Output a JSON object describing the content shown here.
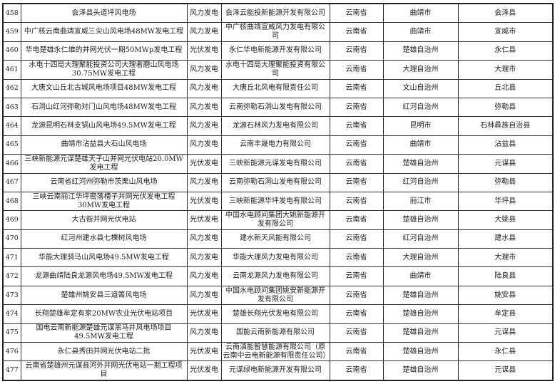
{
  "table": {
    "rows": [
      {
        "no": "458",
        "project": "会泽县头道坪风电场",
        "type": "风力发电",
        "company": "会泽云能投新能源开发有限公司",
        "province": "云南省",
        "city": "曲靖市",
        "county": "会泽县"
      },
      {
        "no": "459",
        "project": "中广核云南曲靖宣威三尖山风电场48MW发电工程",
        "type": "风力发电",
        "company": "中广核曲靖宣威风力发电有限公司",
        "province": "云南省",
        "city": "曲靖市",
        "county": "宣威市"
      },
      {
        "no": "460",
        "project": "华电楚雄永仁维的并网光伏一期50MWp发电工程",
        "type": "光伏发电",
        "company": "永仁华电新能源开发有限公司",
        "province": "云南省",
        "city": "楚雄自治州",
        "county": "永仁县"
      },
      {
        "no": "461",
        "project": "水电十四局大理聚能投资公司大理者磨山风电场30.75MW发电工程",
        "type": "风力发电",
        "company": "水电十四局大理聚能投资有限公司",
        "province": "云南省",
        "city": "大理自治州",
        "county": "大理市"
      },
      {
        "no": "462",
        "project": "大唐文山丘北古城风电场项目48MW发电工程",
        "type": "风力发电",
        "company": "大唐丘北风电有限责任公司",
        "province": "云南省",
        "city": "文山自治州",
        "county": "丘北县"
      },
      {
        "no": "463",
        "project": "石洞山红河弥勒对门山风电场48MW发电工程",
        "type": "风力发电",
        "company": "云南弥勒石洞山发电有限公司",
        "province": "云南省",
        "city": "红河自治州",
        "county": "弥勒县"
      },
      {
        "no": "464",
        "project": "龙源昆明石林支锅山风电场49.5MW发电工程",
        "type": "风力发电",
        "company": "龙源石林风力发电有限公司",
        "province": "云南省",
        "city": "昆明市",
        "county": "石林彝族自治县"
      },
      {
        "no": "465",
        "project": "曲靖市沾益县大石山风电场",
        "type": "风力发电",
        "company": "云南丰晟电力有限公司",
        "province": "云南省",
        "city": "曲靖市",
        "county": "沾益县"
      },
      {
        "no": "466",
        "project": "三峡新能源元谋楚雄天子山并网光伏电站20.0MW发电工程",
        "type": "光伏发电",
        "company": "三峡新能源元谋发电有限公司",
        "province": "云南省",
        "city": "楚雄自治州",
        "county": "元谋县"
      },
      {
        "no": "467",
        "project": "云南省红河州弥勒市茨栗山风电场",
        "type": "风力发电",
        "company": "云南弥勒石洞山发电有限公司",
        "province": "云南省",
        "city": "红河自治州",
        "county": "弥勒县"
      },
      {
        "no": "468",
        "project": "三峡云南丽江华坪密落槽子并网光伏发电工程30MW发电工程",
        "type": "光伏发电",
        "company": "三峡新能源华坪发电有限公司",
        "province": "云南省",
        "city": "丽江市",
        "county": "华坪县"
      },
      {
        "no": "469",
        "project": "大古衙并网光伏电站",
        "type": "光伏发电",
        "company": "中国水电顾问集团大姚新能源开发有限公司",
        "province": "云南省",
        "city": "楚雄自治州",
        "county": "大姚县"
      },
      {
        "no": "470",
        "project": "红河州建水县七棵树风电场",
        "type": "风力发电",
        "company": "建水新天风能有限公司",
        "province": "云南省",
        "city": "红河自治州",
        "county": "建水县"
      },
      {
        "no": "471",
        "project": "华能大理骑马山风电场49.5MW发电工程",
        "type": "风力发电",
        "company": "华能大理风力发电有限公司",
        "province": "云南省",
        "city": "大理自治州",
        "county": "大理市"
      },
      {
        "no": "472",
        "project": "龙源曲靖陆良龙源风电场49.5MW发电工程",
        "type": "风力发电",
        "company": "云南龙源风力发电有限公司",
        "province": "云南省",
        "city": "曲靖市",
        "county": "陆良县"
      },
      {
        "no": "473",
        "project": "楚雄州姚安县三道箐风电场",
        "type": "风力发电",
        "company": "中国水电顾问集团姚安新能源开发有限公司",
        "province": "云南省",
        "city": "楚雄自治州",
        "county": "姚安县"
      },
      {
        "no": "474",
        "project": "长翔楚雄牟定有家20MW农业光伏电站项目",
        "type": "光伏发电",
        "company": "楚雄长翔光伏发电有限公司",
        "province": "云南省",
        "city": "楚雄自治州",
        "county": "牟定县"
      },
      {
        "no": "475",
        "project": "国电云南新能源楚雄元谋黑马井风电场项目49.5MW发电工程",
        "type": "风力发电",
        "company": "国能云南新能源有限公司",
        "province": "云南省",
        "city": "楚雄自治州",
        "county": "元谋县"
      },
      {
        "no": "476",
        "project": "永仁县秀田并网光伏电站二批",
        "type": "光伏发电",
        "company": "云南滇能智慧能源有限公司（原云南中云电新能源有限责任公司）",
        "province": "云南省",
        "city": "楚雄自治州",
        "county": "永仁县"
      },
      {
        "no": "477",
        "project": "云南省楚雄州元谋县河外并网光伏电站一期工程项目",
        "type": "光伏发电",
        "company": "元谋绿电新能源开发有限公司",
        "province": "云南省",
        "city": "楚雄自治州",
        "county": "元谋县"
      }
    ]
  }
}
